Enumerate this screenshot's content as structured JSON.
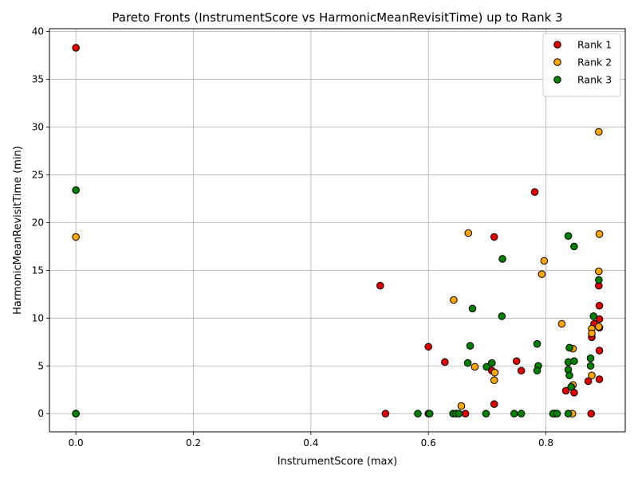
{
  "chart_data": {
    "type": "scatter",
    "title": "Pareto Fronts (InstrumentScore vs HarmonicMeanRevisitTime) up to Rank 3",
    "xlabel": "InstrumentScore (max)",
    "ylabel": "HarmonicMeanRevisitTime (min)",
    "xlim": [
      -0.045,
      0.935
    ],
    "ylim": [
      -1.9,
      40.3
    ],
    "xticks": [
      0.0,
      0.2,
      0.4,
      0.6,
      0.8
    ],
    "xtick_labels": [
      "0.0",
      "0.2",
      "0.4",
      "0.6",
      "0.8"
    ],
    "yticks": [
      0,
      5,
      10,
      15,
      20,
      25,
      30,
      35,
      40
    ],
    "ytick_labels": [
      "0",
      "5",
      "10",
      "15",
      "20",
      "25",
      "30",
      "35",
      "40"
    ],
    "grid": true,
    "legend_position": "upper right",
    "series": [
      {
        "name": "Rank 1",
        "color": "#e00000",
        "points": [
          [
            0.0,
            38.3
          ],
          [
            0.0,
            0.0
          ],
          [
            0.527,
            0.0
          ],
          [
            0.518,
            13.4
          ],
          [
            0.6,
            7.0
          ],
          [
            0.6,
            0.0
          ],
          [
            0.628,
            5.4
          ],
          [
            0.663,
            0.0
          ],
          [
            0.708,
            4.5
          ],
          [
            0.712,
            18.5
          ],
          [
            0.712,
            1.0
          ],
          [
            0.75,
            5.5
          ],
          [
            0.758,
            4.5
          ],
          [
            0.781,
            23.2
          ],
          [
            0.834,
            2.4
          ],
          [
            0.848,
            2.2
          ],
          [
            0.872,
            3.4
          ],
          [
            0.877,
            0.0
          ],
          [
            0.878,
            8.0
          ],
          [
            0.882,
            9.4
          ],
          [
            0.89,
            13.4
          ],
          [
            0.891,
            11.3
          ],
          [
            0.891,
            9.9
          ],
          [
            0.891,
            9.0
          ],
          [
            0.891,
            6.6
          ],
          [
            0.891,
            3.6
          ]
        ]
      },
      {
        "name": "Rank 2",
        "color": "#ffa500",
        "points": [
          [
            0.0,
            18.5
          ],
          [
            0.656,
            0.8
          ],
          [
            0.668,
            18.9
          ],
          [
            0.643,
            11.9
          ],
          [
            0.679,
            4.9
          ],
          [
            0.713,
            4.3
          ],
          [
            0.712,
            3.5
          ],
          [
            0.797,
            16.0
          ],
          [
            0.793,
            14.6
          ],
          [
            0.815,
            0.0
          ],
          [
            0.827,
            9.4
          ],
          [
            0.845,
            0.0
          ],
          [
            0.846,
            6.8
          ],
          [
            0.846,
            3.0
          ],
          [
            0.878,
            8.9
          ],
          [
            0.878,
            8.4
          ],
          [
            0.878,
            4.0
          ],
          [
            0.89,
            29.5
          ],
          [
            0.891,
            18.8
          ],
          [
            0.89,
            14.9
          ],
          [
            0.89,
            9.1
          ]
        ]
      },
      {
        "name": "Rank 3",
        "color": "#008000",
        "points": [
          [
            0.0,
            23.4
          ],
          [
            0.0,
            0.0
          ],
          [
            0.582,
            0.0
          ],
          [
            0.602,
            0.0
          ],
          [
            0.642,
            0.0
          ],
          [
            0.647,
            0.0
          ],
          [
            0.652,
            0.0
          ],
          [
            0.667,
            5.3
          ],
          [
            0.671,
            7.1
          ],
          [
            0.675,
            11.0
          ],
          [
            0.699,
            4.9
          ],
          [
            0.708,
            5.3
          ],
          [
            0.698,
            0.0
          ],
          [
            0.725,
            10.2
          ],
          [
            0.726,
            16.2
          ],
          [
            0.746,
            0.0
          ],
          [
            0.758,
            0.0
          ],
          [
            0.785,
            7.3
          ],
          [
            0.787,
            5.0
          ],
          [
            0.785,
            4.5
          ],
          [
            0.812,
            0.0
          ],
          [
            0.819,
            0.0
          ],
          [
            0.838,
            0.0
          ],
          [
            0.838,
            18.6
          ],
          [
            0.84,
            6.9
          ],
          [
            0.838,
            5.4
          ],
          [
            0.838,
            4.6
          ],
          [
            0.84,
            4.0
          ],
          [
            0.843,
            2.8
          ],
          [
            0.848,
            17.5
          ],
          [
            0.848,
            5.5
          ],
          [
            0.876,
            5.8
          ],
          [
            0.876,
            5.0
          ],
          [
            0.881,
            10.2
          ],
          [
            0.89,
            14.0
          ]
        ]
      }
    ]
  }
}
